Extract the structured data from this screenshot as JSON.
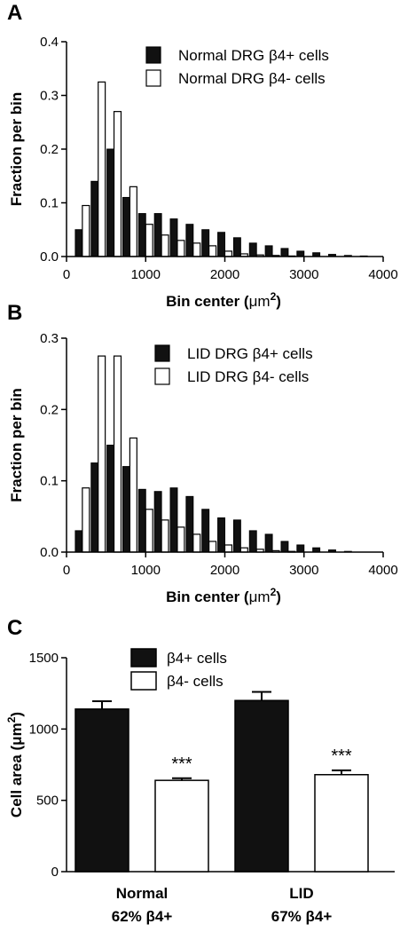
{
  "chart_data": [
    {
      "panel": "A",
      "type": "bar",
      "xlabel": "Bin center (",
      "xlabel_unit": "μm",
      "xlabel_sup": "2",
      "xlabel_close": ")",
      "ylabel": "Fraction per bin",
      "xlim": [
        0,
        4000
      ],
      "ylim": [
        0,
        0.4
      ],
      "xticks": [
        "0",
        "1000",
        "2000",
        "3000",
        "4000"
      ],
      "yticks": [
        "0.0",
        "0.1",
        "0.2",
        "0.3",
        "0.4"
      ],
      "legend": "top-right",
      "bin_width": 200,
      "x": [
        200,
        400,
        600,
        800,
        1000,
        1200,
        1400,
        1600,
        1800,
        2000,
        2200,
        2400,
        2600,
        2800,
        3000,
        3200,
        3400,
        3600,
        3800
      ],
      "series": [
        {
          "name": "Normal DRG β4+ cells",
          "color": "#111111",
          "values": [
            0.05,
            0.14,
            0.2,
            0.11,
            0.08,
            0.08,
            0.07,
            0.06,
            0.05,
            0.045,
            0.035,
            0.025,
            0.02,
            0.015,
            0.01,
            0.007,
            0.004,
            0.002,
            0.001
          ]
        },
        {
          "name": "Normal DRG β4- cells",
          "color": "#ffffff",
          "values": [
            0.095,
            0.325,
            0.27,
            0.13,
            0.06,
            0.04,
            0.03,
            0.025,
            0.02,
            0.01,
            0.005,
            0.003,
            0.002,
            0.001,
            0.0,
            0.0,
            0.0,
            0.0,
            0.0
          ]
        }
      ]
    },
    {
      "panel": "B",
      "type": "bar",
      "xlabel": "Bin center (",
      "xlabel_unit": "μm",
      "xlabel_sup": "2",
      "xlabel_close": ")",
      "ylabel": "Fraction per bin",
      "xlim": [
        0,
        4000
      ],
      "ylim": [
        0,
        0.3
      ],
      "xticks": [
        "0",
        "1000",
        "2000",
        "3000",
        "4000"
      ],
      "yticks": [
        "0.0",
        "0.1",
        "0.2",
        "0.3"
      ],
      "legend": "top-right",
      "bin_width": 200,
      "x": [
        200,
        400,
        600,
        800,
        1000,
        1200,
        1400,
        1600,
        1800,
        2000,
        2200,
        2400,
        2600,
        2800,
        3000,
        3200,
        3400,
        3600,
        3800
      ],
      "series": [
        {
          "name": "LID DRG β4+ cells",
          "color": "#111111",
          "values": [
            0.03,
            0.125,
            0.15,
            0.12,
            0.088,
            0.085,
            0.09,
            0.078,
            0.06,
            0.048,
            0.045,
            0.03,
            0.025,
            0.015,
            0.01,
            0.006,
            0.003,
            0.001,
            0.0
          ]
        },
        {
          "name": "LID DRG β4- cells",
          "color": "#ffffff",
          "values": [
            0.09,
            0.275,
            0.275,
            0.16,
            0.06,
            0.045,
            0.035,
            0.025,
            0.015,
            0.01,
            0.006,
            0.004,
            0.002,
            0.001,
            0.0,
            0.0,
            0.0,
            0.0,
            0.0
          ]
        }
      ]
    },
    {
      "panel": "C",
      "type": "bar",
      "ylabel": "Cell area (",
      "ylabel_unit": "μm",
      "ylabel_sup": "2",
      "ylabel_close": ")",
      "ylim": [
        0,
        1500
      ],
      "yticks": [
        "0",
        "500",
        "1000",
        "1500"
      ],
      "legend": "top-center",
      "categories": [
        {
          "line1": "Normal",
          "line2": "62% β4+"
        },
        {
          "line1": "LID",
          "line2": "67% β4+"
        }
      ],
      "series": [
        {
          "name": "β4+ cells",
          "color": "#111111",
          "values": [
            1140,
            1200
          ],
          "errors": [
            55,
            60
          ]
        },
        {
          "name": "β4- cells",
          "color": "#ffffff",
          "values": [
            640,
            680
          ],
          "errors": [
            15,
            30
          ],
          "annotations": [
            "***",
            "***"
          ]
        }
      ]
    }
  ]
}
